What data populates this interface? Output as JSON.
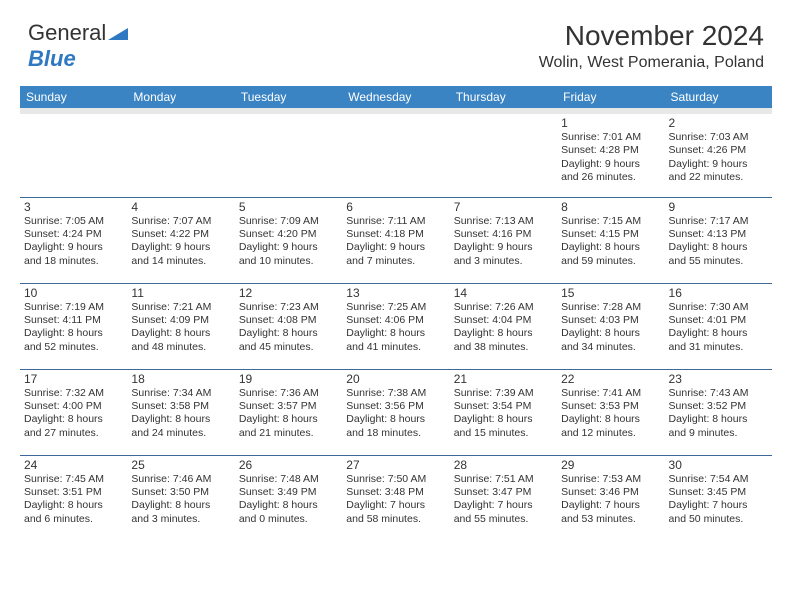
{
  "logo": {
    "text1": "General",
    "text2": "Blue"
  },
  "title": {
    "month": "November 2024",
    "location": "Wolin, West Pomerania, Poland"
  },
  "colors": {
    "header_bg": "#3b84c4",
    "header_text": "#ffffff",
    "row_divider": "#3b6a9a",
    "spacer_bg": "#e8e8e8",
    "body_text": "#333333",
    "logo_blue": "#2f79c2"
  },
  "weekdays": [
    "Sunday",
    "Monday",
    "Tuesday",
    "Wednesday",
    "Thursday",
    "Friday",
    "Saturday"
  ],
  "weeks": [
    [
      null,
      null,
      null,
      null,
      null,
      {
        "n": "1",
        "sr": "Sunrise: 7:01 AM",
        "ss": "Sunset: 4:28 PM",
        "d1": "Daylight: 9 hours",
        "d2": "and 26 minutes."
      },
      {
        "n": "2",
        "sr": "Sunrise: 7:03 AM",
        "ss": "Sunset: 4:26 PM",
        "d1": "Daylight: 9 hours",
        "d2": "and 22 minutes."
      }
    ],
    [
      {
        "n": "3",
        "sr": "Sunrise: 7:05 AM",
        "ss": "Sunset: 4:24 PM",
        "d1": "Daylight: 9 hours",
        "d2": "and 18 minutes."
      },
      {
        "n": "4",
        "sr": "Sunrise: 7:07 AM",
        "ss": "Sunset: 4:22 PM",
        "d1": "Daylight: 9 hours",
        "d2": "and 14 minutes."
      },
      {
        "n": "5",
        "sr": "Sunrise: 7:09 AM",
        "ss": "Sunset: 4:20 PM",
        "d1": "Daylight: 9 hours",
        "d2": "and 10 minutes."
      },
      {
        "n": "6",
        "sr": "Sunrise: 7:11 AM",
        "ss": "Sunset: 4:18 PM",
        "d1": "Daylight: 9 hours",
        "d2": "and 7 minutes."
      },
      {
        "n": "7",
        "sr": "Sunrise: 7:13 AM",
        "ss": "Sunset: 4:16 PM",
        "d1": "Daylight: 9 hours",
        "d2": "and 3 minutes."
      },
      {
        "n": "8",
        "sr": "Sunrise: 7:15 AM",
        "ss": "Sunset: 4:15 PM",
        "d1": "Daylight: 8 hours",
        "d2": "and 59 minutes."
      },
      {
        "n": "9",
        "sr": "Sunrise: 7:17 AM",
        "ss": "Sunset: 4:13 PM",
        "d1": "Daylight: 8 hours",
        "d2": "and 55 minutes."
      }
    ],
    [
      {
        "n": "10",
        "sr": "Sunrise: 7:19 AM",
        "ss": "Sunset: 4:11 PM",
        "d1": "Daylight: 8 hours",
        "d2": "and 52 minutes."
      },
      {
        "n": "11",
        "sr": "Sunrise: 7:21 AM",
        "ss": "Sunset: 4:09 PM",
        "d1": "Daylight: 8 hours",
        "d2": "and 48 minutes."
      },
      {
        "n": "12",
        "sr": "Sunrise: 7:23 AM",
        "ss": "Sunset: 4:08 PM",
        "d1": "Daylight: 8 hours",
        "d2": "and 45 minutes."
      },
      {
        "n": "13",
        "sr": "Sunrise: 7:25 AM",
        "ss": "Sunset: 4:06 PM",
        "d1": "Daylight: 8 hours",
        "d2": "and 41 minutes."
      },
      {
        "n": "14",
        "sr": "Sunrise: 7:26 AM",
        "ss": "Sunset: 4:04 PM",
        "d1": "Daylight: 8 hours",
        "d2": "and 38 minutes."
      },
      {
        "n": "15",
        "sr": "Sunrise: 7:28 AM",
        "ss": "Sunset: 4:03 PM",
        "d1": "Daylight: 8 hours",
        "d2": "and 34 minutes."
      },
      {
        "n": "16",
        "sr": "Sunrise: 7:30 AM",
        "ss": "Sunset: 4:01 PM",
        "d1": "Daylight: 8 hours",
        "d2": "and 31 minutes."
      }
    ],
    [
      {
        "n": "17",
        "sr": "Sunrise: 7:32 AM",
        "ss": "Sunset: 4:00 PM",
        "d1": "Daylight: 8 hours",
        "d2": "and 27 minutes."
      },
      {
        "n": "18",
        "sr": "Sunrise: 7:34 AM",
        "ss": "Sunset: 3:58 PM",
        "d1": "Daylight: 8 hours",
        "d2": "and 24 minutes."
      },
      {
        "n": "19",
        "sr": "Sunrise: 7:36 AM",
        "ss": "Sunset: 3:57 PM",
        "d1": "Daylight: 8 hours",
        "d2": "and 21 minutes."
      },
      {
        "n": "20",
        "sr": "Sunrise: 7:38 AM",
        "ss": "Sunset: 3:56 PM",
        "d1": "Daylight: 8 hours",
        "d2": "and 18 minutes."
      },
      {
        "n": "21",
        "sr": "Sunrise: 7:39 AM",
        "ss": "Sunset: 3:54 PM",
        "d1": "Daylight: 8 hours",
        "d2": "and 15 minutes."
      },
      {
        "n": "22",
        "sr": "Sunrise: 7:41 AM",
        "ss": "Sunset: 3:53 PM",
        "d1": "Daylight: 8 hours",
        "d2": "and 12 minutes."
      },
      {
        "n": "23",
        "sr": "Sunrise: 7:43 AM",
        "ss": "Sunset: 3:52 PM",
        "d1": "Daylight: 8 hours",
        "d2": "and 9 minutes."
      }
    ],
    [
      {
        "n": "24",
        "sr": "Sunrise: 7:45 AM",
        "ss": "Sunset: 3:51 PM",
        "d1": "Daylight: 8 hours",
        "d2": "and 6 minutes."
      },
      {
        "n": "25",
        "sr": "Sunrise: 7:46 AM",
        "ss": "Sunset: 3:50 PM",
        "d1": "Daylight: 8 hours",
        "d2": "and 3 minutes."
      },
      {
        "n": "26",
        "sr": "Sunrise: 7:48 AM",
        "ss": "Sunset: 3:49 PM",
        "d1": "Daylight: 8 hours",
        "d2": "and 0 minutes."
      },
      {
        "n": "27",
        "sr": "Sunrise: 7:50 AM",
        "ss": "Sunset: 3:48 PM",
        "d1": "Daylight: 7 hours",
        "d2": "and 58 minutes."
      },
      {
        "n": "28",
        "sr": "Sunrise: 7:51 AM",
        "ss": "Sunset: 3:47 PM",
        "d1": "Daylight: 7 hours",
        "d2": "and 55 minutes."
      },
      {
        "n": "29",
        "sr": "Sunrise: 7:53 AM",
        "ss": "Sunset: 3:46 PM",
        "d1": "Daylight: 7 hours",
        "d2": "and 53 minutes."
      },
      {
        "n": "30",
        "sr": "Sunrise: 7:54 AM",
        "ss": "Sunset: 3:45 PM",
        "d1": "Daylight: 7 hours",
        "d2": "and 50 minutes."
      }
    ]
  ]
}
